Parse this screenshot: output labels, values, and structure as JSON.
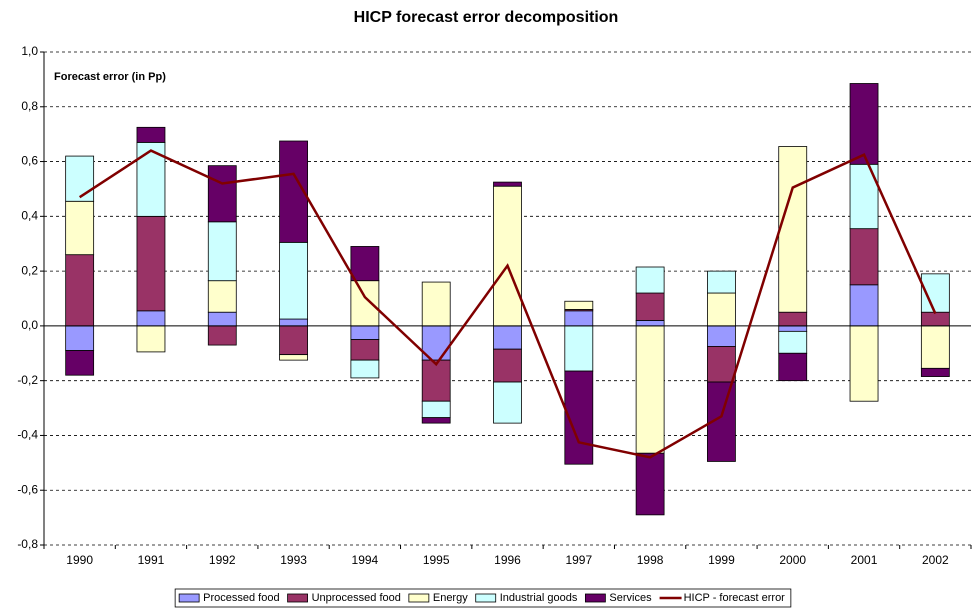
{
  "chart_data": {
    "type": "bar",
    "stacked": true,
    "title": "HICP forecast error decomposition",
    "annotation": "Forecast error (in Pp)",
    "categories": [
      "1990",
      "1991",
      "1992",
      "1993",
      "1994",
      "1995",
      "1996",
      "1997",
      "1998",
      "1999",
      "2000",
      "2001",
      "2002"
    ],
    "series": [
      {
        "name": "Processed food",
        "color": "#9999ff",
        "values": [
          -0.09,
          0.055,
          0.05,
          0.025,
          -0.05,
          -0.125,
          -0.085,
          0.055,
          0.02,
          -0.075,
          -0.02,
          0.15,
          0
        ]
      },
      {
        "name": "Unprocessed food",
        "color": "#993366",
        "values": [
          0.26,
          0.345,
          -0.07,
          -0.105,
          -0.075,
          -0.15,
          -0.12,
          0.005,
          0.1,
          -0.13,
          0.05,
          0.205,
          0.05
        ]
      },
      {
        "name": "Energy",
        "color": "#ffffcc",
        "values": [
          0.195,
          -0.095,
          0.115,
          -0.02,
          0.165,
          0.16,
          0.51,
          0.03,
          -0.465,
          0.12,
          0.605,
          -0.275,
          -0.155
        ]
      },
      {
        "name": "Industrial goods",
        "color": "#ccffff",
        "values": [
          0.165,
          0.27,
          0.215,
          0.28,
          -0.065,
          -0.06,
          -0.15,
          -0.165,
          0.095,
          0.08,
          -0.08,
          0.235,
          0.14
        ]
      },
      {
        "name": "Services",
        "color": "#660066",
        "values": [
          -0.09,
          0.055,
          0.205,
          0.37,
          0.125,
          -0.02,
          0.015,
          -0.34,
          -0.225,
          -0.29,
          -0.1,
          0.295,
          -0.03
        ]
      },
      {
        "name": "HICP - forecast error",
        "color": "#800000",
        "type": "line",
        "values": [
          0.47,
          0.64,
          0.52,
          0.555,
          0.105,
          -0.14,
          0.22,
          -0.425,
          -0.48,
          -0.33,
          0.505,
          0.625,
          0.045
        ]
      }
    ],
    "ylim": [
      -0.8,
      1.0
    ],
    "yticks": [
      {
        "value": -0.8,
        "label": "-0,8"
      },
      {
        "value": -0.6,
        "label": "-0,6"
      },
      {
        "value": -0.4,
        "label": "-0,4"
      },
      {
        "value": -0.2,
        "label": "-0,2"
      },
      {
        "value": 0,
        "label": "0,0"
      },
      {
        "value": 0.2,
        "label": "0,2"
      },
      {
        "value": 0.4,
        "label": "0,4"
      },
      {
        "value": 0.6,
        "label": "0,6"
      },
      {
        "value": 0.8,
        "label": "0,8"
      },
      {
        "value": 1.0,
        "label": "1,0"
      }
    ],
    "grid": true,
    "legend": "bottom"
  }
}
